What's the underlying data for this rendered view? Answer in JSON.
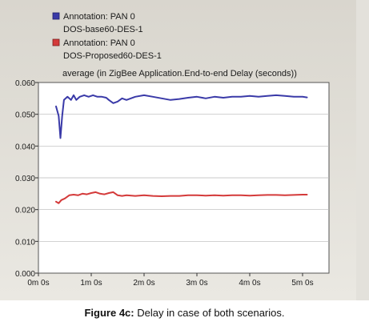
{
  "chart_data": {
    "type": "line",
    "title": "average (in ZigBee Application.End-to-end Delay (seconds))",
    "xlabel": "",
    "ylabel": "",
    "xlim": [
      0,
      330
    ],
    "ylim": [
      0,
      0.06
    ],
    "x_ticks": [
      {
        "value": 0,
        "label": "0m 0s"
      },
      {
        "value": 60,
        "label": "1m 0s"
      },
      {
        "value": 120,
        "label": "2m 0s"
      },
      {
        "value": 180,
        "label": "3m 0s"
      },
      {
        "value": 240,
        "label": "4m 0s"
      },
      {
        "value": 300,
        "label": "5m 0s"
      }
    ],
    "y_ticks": [
      {
        "value": 0,
        "label": "0.000"
      },
      {
        "value": 0.01,
        "label": "0.010"
      },
      {
        "value": 0.02,
        "label": "0.020"
      },
      {
        "value": 0.03,
        "label": "0.030"
      },
      {
        "value": 0.04,
        "label": "0.040"
      },
      {
        "value": 0.05,
        "label": "0.050"
      },
      {
        "value": 0.06,
        "label": "0.060"
      }
    ],
    "grid": true,
    "legend_position": "top-left",
    "series": [
      {
        "name_line1": "Annotation: PAN 0",
        "name_line2": "DOS-base60-DES-1",
        "color": "#3a3aa8",
        "x": [
          20,
          23,
          25,
          27,
          29,
          33,
          37,
          40,
          43,
          47,
          52,
          57,
          62,
          67,
          72,
          77,
          80,
          85,
          90,
          95,
          100,
          110,
          120,
          130,
          140,
          150,
          160,
          170,
          180,
          190,
          200,
          210,
          220,
          230,
          240,
          250,
          260,
          270,
          280,
          290,
          300,
          305
        ],
        "y": [
          0.0525,
          0.0495,
          0.0425,
          0.0495,
          0.0545,
          0.0555,
          0.0545,
          0.056,
          0.0545,
          0.0555,
          0.056,
          0.0555,
          0.056,
          0.0555,
          0.0555,
          0.0552,
          0.0545,
          0.0535,
          0.054,
          0.055,
          0.0545,
          0.0555,
          0.056,
          0.0555,
          0.055,
          0.0545,
          0.0548,
          0.0552,
          0.0555,
          0.055,
          0.0555,
          0.0552,
          0.0555,
          0.0555,
          0.0558,
          0.0555,
          0.0558,
          0.056,
          0.0558,
          0.0555,
          0.0555,
          0.0553
        ]
      },
      {
        "name_line1": "Annotation: PAN 0",
        "name_line2": "DOS-Proposed60-DES-1",
        "color": "#d43a3a",
        "x": [
          20,
          23,
          26,
          30,
          35,
          40,
          45,
          50,
          55,
          60,
          65,
          70,
          75,
          80,
          85,
          90,
          95,
          100,
          110,
          120,
          130,
          140,
          150,
          160,
          170,
          180,
          190,
          200,
          210,
          220,
          230,
          240,
          250,
          260,
          270,
          280,
          290,
          300,
          305
        ],
        "y": [
          0.0225,
          0.022,
          0.023,
          0.0235,
          0.0245,
          0.0247,
          0.0245,
          0.025,
          0.0248,
          0.0252,
          0.0255,
          0.025,
          0.0248,
          0.0252,
          0.0255,
          0.0245,
          0.0243,
          0.0245,
          0.0243,
          0.0245,
          0.0243,
          0.0242,
          0.0243,
          0.0243,
          0.0245,
          0.0245,
          0.0244,
          0.0245,
          0.0244,
          0.0245,
          0.0245,
          0.0244,
          0.0245,
          0.0246,
          0.0246,
          0.0245,
          0.0246,
          0.0247,
          0.0247
        ]
      }
    ]
  },
  "caption": {
    "label": "Figure 4c:",
    "text": " Delay in case of both scenarios."
  }
}
